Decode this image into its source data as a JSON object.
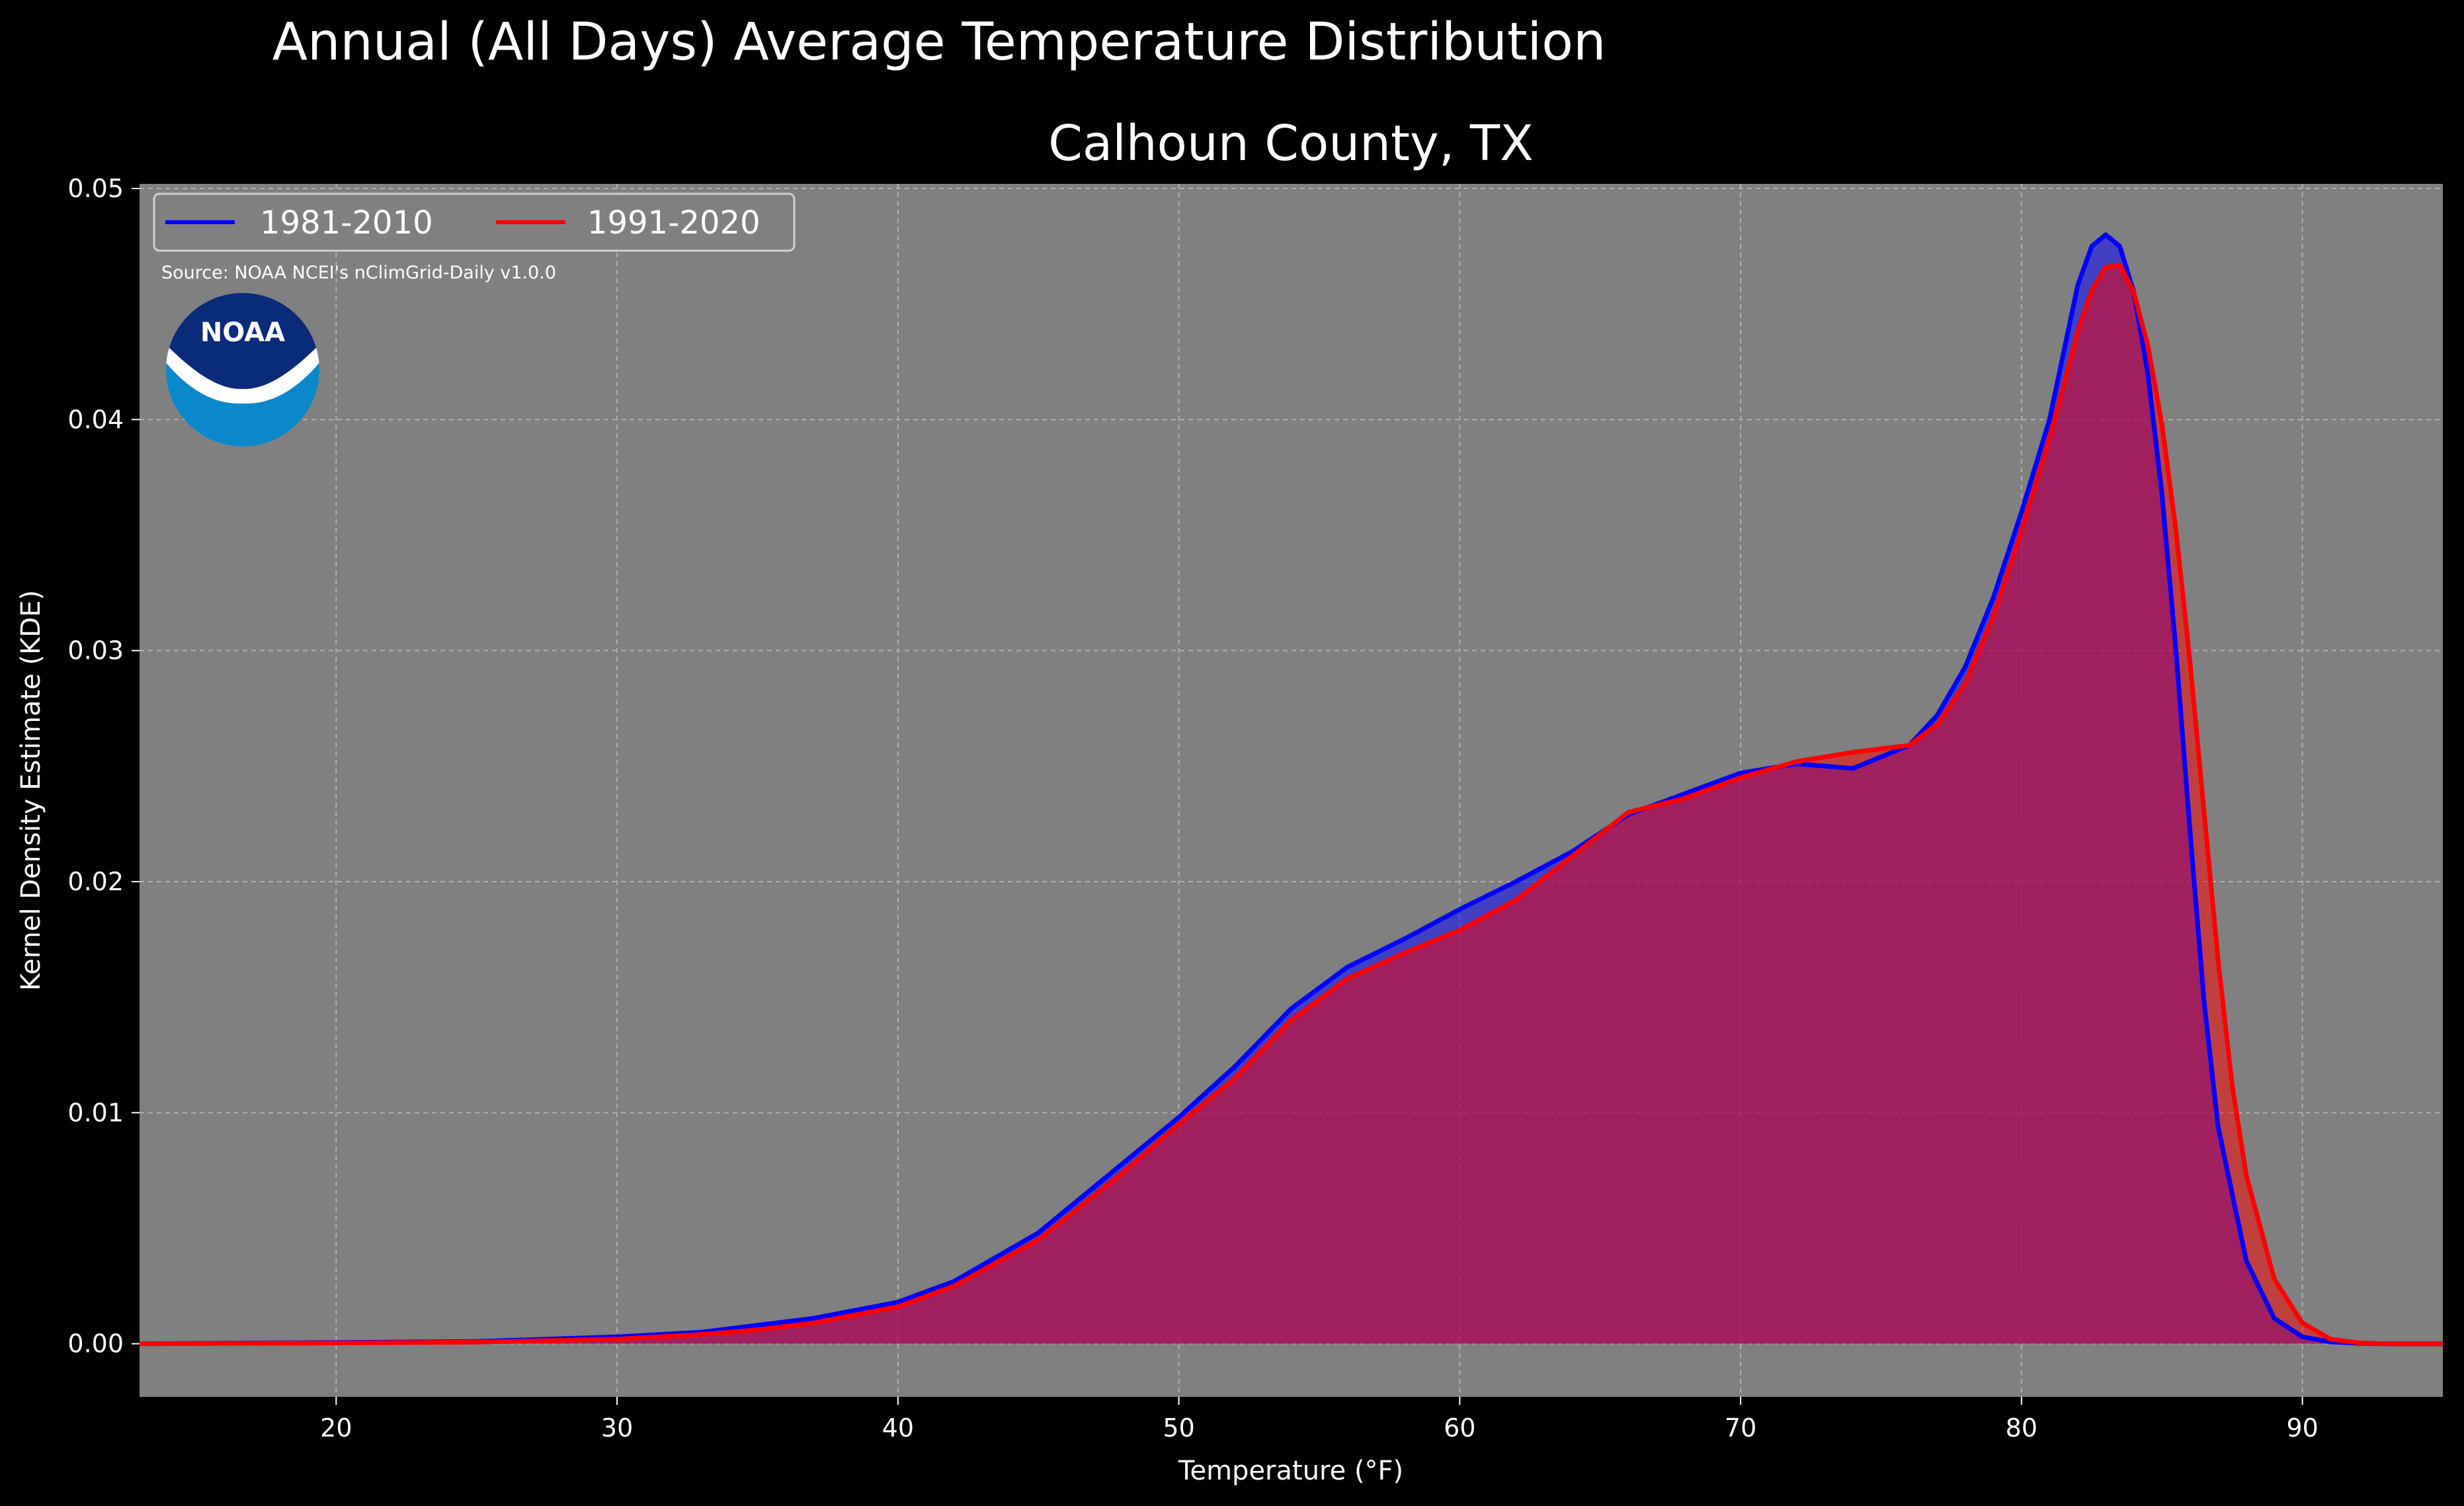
{
  "chart_data": {
    "type": "area",
    "title": "Annual (All Days) Average Temperature Distribution",
    "subtitle": "Calhoun County, TX",
    "xlabel": "Temperature (°F)",
    "ylabel": "Kernel Density Estimate (KDE)",
    "xlim": [
      13,
      95
    ],
    "ylim": [
      -0.0023,
      0.0502
    ],
    "xticks": [
      "20",
      "30",
      "40",
      "50",
      "60",
      "70",
      "80",
      "90"
    ],
    "yticks": [
      "0.00",
      "0.01",
      "0.02",
      "0.03",
      "0.04",
      "0.05"
    ],
    "grid": true,
    "legend_position": "top-left",
    "source_note": "Source: NOAA NCEI's nClimGrid-Daily v1.0.0",
    "logo_text": "NOAA",
    "background": "#808080",
    "series": [
      {
        "name": "1981-2010",
        "color": "#0000ff",
        "x": [
          13,
          20,
          25,
          30,
          33,
          35,
          37,
          40,
          42,
          45,
          48,
          50,
          52,
          54,
          56,
          58,
          60,
          62,
          64,
          66,
          68,
          70,
          72,
          74,
          76,
          77,
          78,
          79,
          80,
          81,
          82,
          82.5,
          83,
          83.5,
          84,
          84.5,
          85,
          85.5,
          86,
          86.5,
          87,
          88,
          89,
          90,
          91,
          92,
          93,
          95
        ],
        "y": [
          0.0,
          5e-05,
          0.0001,
          0.0003,
          0.0005,
          0.0008,
          0.0011,
          0.0018,
          0.0027,
          0.0048,
          0.0078,
          0.0098,
          0.012,
          0.0145,
          0.0163,
          0.0175,
          0.0188,
          0.02,
          0.0213,
          0.0229,
          0.0238,
          0.0247,
          0.0251,
          0.0249,
          0.0259,
          0.0272,
          0.0293,
          0.0323,
          0.036,
          0.04,
          0.0458,
          0.0475,
          0.048,
          0.0475,
          0.0455,
          0.042,
          0.0368,
          0.03,
          0.0222,
          0.0148,
          0.0094,
          0.0036,
          0.0011,
          0.0003,
          8e-05,
          2e-05,
          0.0,
          0.0
        ]
      },
      {
        "name": "1991-2020",
        "color": "#ff0000",
        "x": [
          13,
          20,
          25,
          30,
          33,
          35,
          37,
          40,
          42,
          45,
          48,
          50,
          52,
          54,
          56,
          58,
          60,
          62,
          64,
          66,
          68,
          70,
          72,
          74,
          76,
          77,
          78,
          79,
          80,
          81,
          82,
          82.5,
          83,
          83.5,
          84,
          84.5,
          85,
          85.5,
          86,
          86.5,
          87,
          87.5,
          88,
          89,
          90,
          91,
          92,
          93,
          95
        ],
        "y": [
          0.0,
          3e-05,
          7e-05,
          0.0002,
          0.0004,
          0.0006,
          0.0009,
          0.0016,
          0.0025,
          0.0045,
          0.0074,
          0.0095,
          0.0115,
          0.014,
          0.0158,
          0.0169,
          0.0179,
          0.0192,
          0.0211,
          0.023,
          0.0236,
          0.0245,
          0.0252,
          0.0256,
          0.0259,
          0.0268,
          0.0286,
          0.0315,
          0.0352,
          0.0392,
          0.0438,
          0.0456,
          0.0466,
          0.0467,
          0.0455,
          0.0432,
          0.0398,
          0.0352,
          0.0295,
          0.023,
          0.0166,
          0.0112,
          0.0073,
          0.0028,
          0.0009,
          0.0002,
          4e-05,
          0.0,
          0.0
        ]
      }
    ]
  }
}
